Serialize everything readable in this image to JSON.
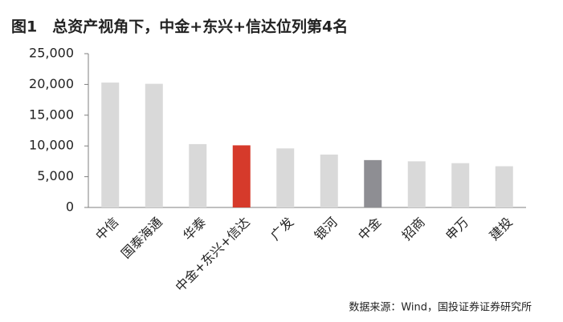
{
  "chart_data": {
    "type": "bar",
    "title": "图1　总资产视角下，中金+东兴+信达位列第4名",
    "categories": [
      "中信",
      "国泰海通",
      "华泰",
      "中金+东兴+信达",
      "广发",
      "银河",
      "中金",
      "招商",
      "申万",
      "建投"
    ],
    "values": [
      20300,
      20100,
      10300,
      10100,
      9600,
      8600,
      7700,
      7500,
      7200,
      6700
    ],
    "colors": [
      "#d9d9d9",
      "#d9d9d9",
      "#d9d9d9",
      "#d63a2b",
      "#d9d9d9",
      "#d9d9d9",
      "#8e8e93",
      "#d9d9d9",
      "#d9d9d9",
      "#d9d9d9"
    ],
    "ylim": [
      0,
      25000
    ],
    "yticks": [
      0,
      {
        "value": 5000,
        "label": "5,000"
      },
      {
        "value": 10000,
        "label": "10,000"
      },
      {
        "value": 15000,
        "label": "15,000"
      },
      {
        "value": 20000,
        "label": "20,000"
      },
      {
        "value": 25000,
        "label": "25,000"
      }
    ],
    "grid": false,
    "source": "数据来源：Wind，国投证券证券研究所"
  }
}
